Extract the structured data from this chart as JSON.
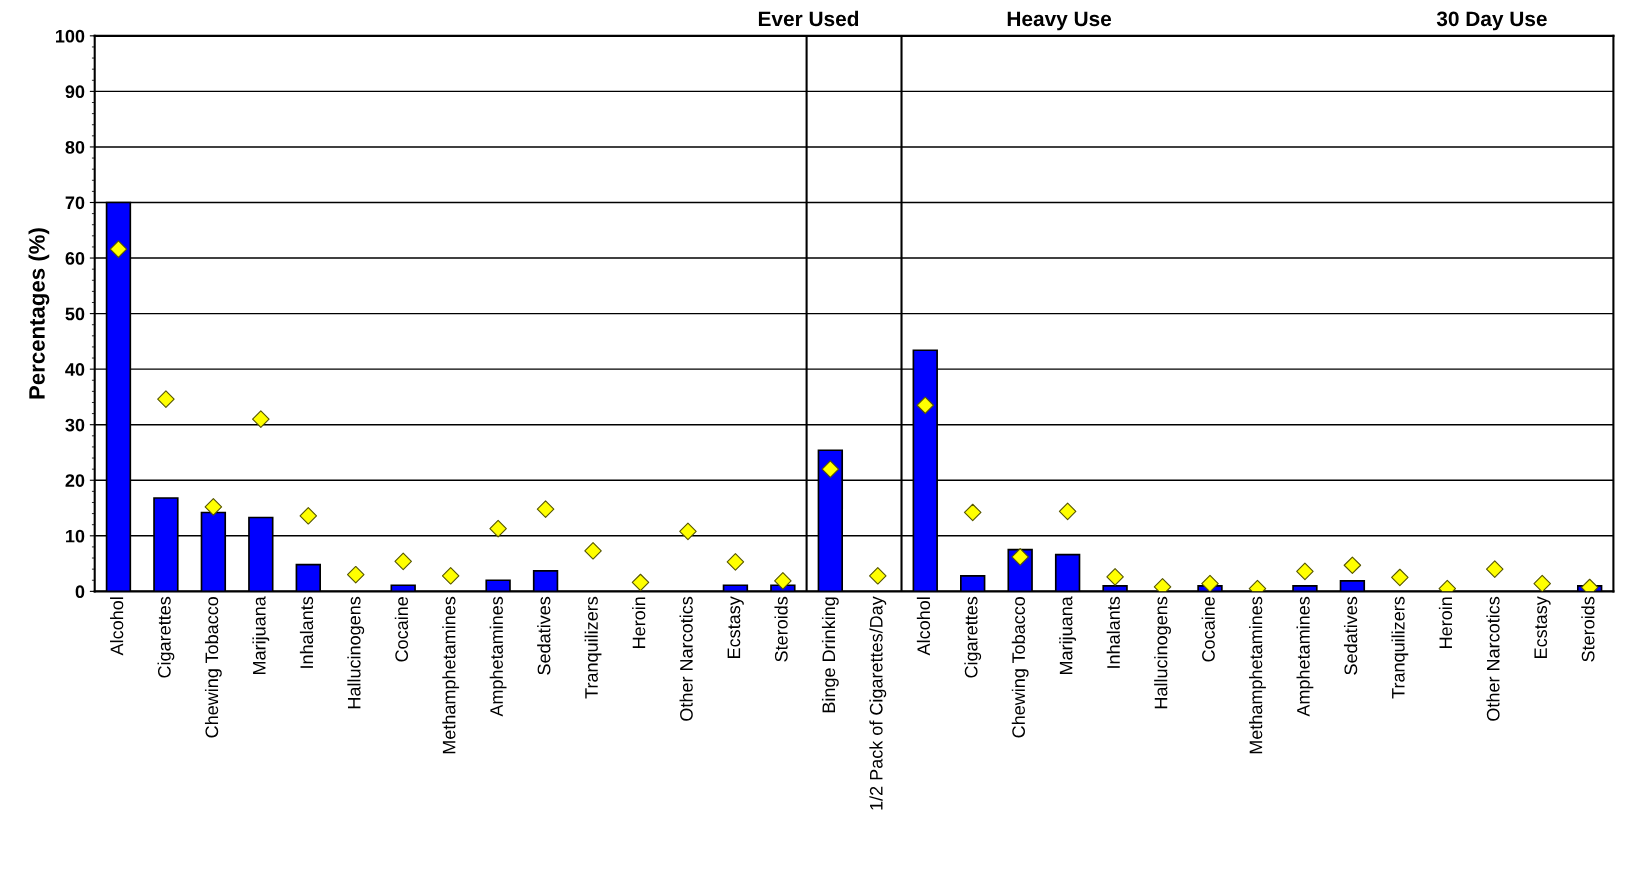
{
  "chart_data": {
    "type": "bar",
    "ylabel": "Percentages (%)",
    "categories": [
      "Alcohol",
      "Cigarettes",
      "Chewing Tobacco",
      "Marijuana",
      "Inhalants",
      "Hallucinogens",
      "Cocaine",
      "Methamphetamines",
      "Amphetamines",
      "Sedatives",
      "Tranquilizers",
      "Heroin",
      "Other Narcotics",
      "Ecstasy",
      "Steroids",
      "Binge Drinking",
      "1/2 Pack of Cigarettes/Day",
      "Alcohol",
      "Cigarettes",
      "Chewing Tobacco",
      "Marijuana",
      "Inhalants",
      "Hallucinogens",
      "Cocaine",
      "Methamphetamines",
      "Amphetamines",
      "Sedatives",
      "Tranquilizers",
      "Heroin",
      "Other Narcotics",
      "Ecstasy",
      "Steroids"
    ],
    "series": [
      {
        "color": "#0000ff",
        "values": [
          70,
          16.8,
          14.2,
          13.3,
          4.8,
          0,
          1.1,
          0,
          2,
          3.7,
          0,
          0,
          0,
          1.1,
          1.1,
          25.4,
          0,
          43.4,
          2.8,
          7.5,
          6.6,
          1.0,
          0,
          1.0,
          0,
          1.0,
          1.9,
          0,
          0,
          0,
          0,
          1.0
        ]
      },
      {
        "type": "scatter",
        "color": "#ffff00",
        "marker": "diamond",
        "values": [
          61.6,
          34.6,
          15.2,
          31.0,
          13.6,
          3.0,
          5.4,
          2.8,
          11.3,
          14.8,
          7.3,
          1.6,
          10.8,
          5.3,
          1.9,
          22.0,
          2.8,
          33.5,
          14.2,
          6.2,
          14.4,
          2.6,
          0.8,
          1.4,
          0.5,
          3.6,
          4.7,
          2.5,
          0.5,
          4.0,
          1.4,
          0.7
        ]
      }
    ],
    "ylim": [
      0,
      100
    ],
    "yticks": [
      0,
      10,
      20,
      30,
      40,
      50,
      60,
      70,
      80,
      90,
      100
    ],
    "grid": "y",
    "annotations": [
      "Ever Used",
      "Heavy Use",
      "30 Day Use"
    ]
  }
}
